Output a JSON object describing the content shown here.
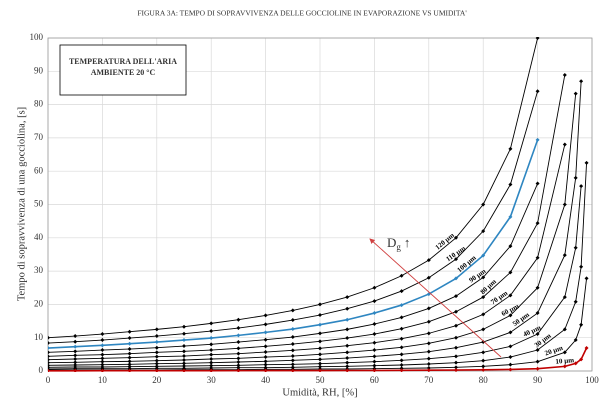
{
  "chart_data": {
    "type": "line",
    "title": "FIGURA 3A: TEMPO DI SOPRAVVIVENZA  DELLE GOCCIOLINE IN EVAPORAZIONE VS UMIDITA'",
    "xlabel": "Umidità, RH, [%]",
    "ylabel": "Tempo di sopravvivenza di una gocciolina, [s]",
    "annotation": [
      "TEMPERATURA DELL'ARIA",
      "AMBIENTE 20 °C"
    ],
    "arrow_label": {
      "text": "D",
      "sub": "g",
      "arrow": "↑"
    },
    "x": [
      0,
      5,
      10,
      15,
      20,
      25,
      30,
      35,
      40,
      45,
      50,
      55,
      60,
      65,
      70,
      75,
      80,
      85,
      90,
      95,
      97,
      98,
      99
    ],
    "xlim": [
      0,
      100
    ],
    "xticks": [
      0,
      10,
      20,
      30,
      40,
      50,
      60,
      70,
      80,
      90,
      100
    ],
    "ylim": [
      0,
      100
    ],
    "yticks": [
      0,
      10,
      20,
      30,
      40,
      50,
      60,
      70,
      80,
      90,
      100
    ],
    "grid": true,
    "series": [
      {
        "name": "120 µm",
        "color": "#000000",
        "values": [
          10,
          10.5,
          11.1,
          11.8,
          12.5,
          13.3,
          14.3,
          15.4,
          16.7,
          18.2,
          20,
          22.2,
          25,
          28.6,
          33.3,
          40,
          50,
          66.7,
          100,
          null,
          null,
          null,
          null
        ]
      },
      {
        "name": "110 µm",
        "color": "#000000",
        "values": [
          8.4,
          8.8,
          9.3,
          9.9,
          10.5,
          11.2,
          12.0,
          12.9,
          14.0,
          15.3,
          16.8,
          18.7,
          21.0,
          24.0,
          28.0,
          33.6,
          42.0,
          56.0,
          84.0,
          null,
          null,
          null,
          null
        ]
      },
      {
        "name": "100 µm",
        "color": "#2e86c1",
        "values": [
          6.9,
          7.3,
          7.7,
          8.2,
          8.7,
          9.3,
          9.9,
          10.7,
          11.6,
          12.6,
          13.9,
          15.4,
          17.4,
          19.8,
          23.1,
          27.8,
          34.7,
          46.3,
          69.4,
          null,
          null,
          null,
          null
        ]
      },
      {
        "name": "90 µm",
        "color": "#000000",
        "values": [
          5.6,
          5.9,
          6.3,
          6.6,
          7.0,
          7.5,
          8.0,
          8.7,
          9.4,
          10.2,
          11.3,
          12.5,
          14.1,
          16.1,
          18.8,
          22.5,
          28.1,
          37.5,
          56.3,
          null,
          null,
          null,
          null
        ]
      },
      {
        "name": "80 µm",
        "color": "#000000",
        "values": [
          4.4,
          4.7,
          4.9,
          5.2,
          5.6,
          5.9,
          6.3,
          6.8,
          7.4,
          8.1,
          8.9,
          9.9,
          11.1,
          12.7,
          14.8,
          17.8,
          22.2,
          29.6,
          44.4,
          88.9,
          null,
          null,
          null
        ]
      },
      {
        "name": "70 µm",
        "color": "#000000",
        "values": [
          3.4,
          3.6,
          3.8,
          4.0,
          4.3,
          4.5,
          4.9,
          5.2,
          5.7,
          6.2,
          6.8,
          7.6,
          8.5,
          9.7,
          11.3,
          13.6,
          17.0,
          22.7,
          34.0,
          68.0,
          null,
          null,
          null
        ]
      },
      {
        "name": "60 µm",
        "color": "#000000",
        "values": [
          2.5,
          2.6,
          2.8,
          2.9,
          3.1,
          3.3,
          3.6,
          3.8,
          4.2,
          4.5,
          5.0,
          5.6,
          6.3,
          7.1,
          8.3,
          10.0,
          12.5,
          16.7,
          25.0,
          50.0,
          83.3,
          null,
          null
        ]
      },
      {
        "name": "50 µm",
        "color": "#000000",
        "values": [
          1.7,
          1.8,
          1.9,
          2.0,
          2.2,
          2.3,
          2.5,
          2.7,
          2.9,
          3.2,
          3.5,
          3.9,
          4.4,
          5.0,
          5.8,
          7.0,
          8.7,
          11.6,
          17.4,
          34.8,
          58.0,
          87.0,
          null
        ]
      },
      {
        "name": "40 µm",
        "color": "#000000",
        "values": [
          1.1,
          1.2,
          1.2,
          1.3,
          1.4,
          1.5,
          1.6,
          1.7,
          1.9,
          2.0,
          2.2,
          2.5,
          2.8,
          3.2,
          3.7,
          4.4,
          5.6,
          7.4,
          11.1,
          22.2,
          37.0,
          55.5,
          null
        ]
      },
      {
        "name": "30 µm",
        "color": "#000000",
        "values": [
          0.6,
          0.7,
          0.7,
          0.7,
          0.8,
          0.8,
          0.9,
          1.0,
          1.0,
          1.1,
          1.3,
          1.4,
          1.6,
          1.8,
          2.1,
          2.5,
          3.1,
          4.2,
          6.3,
          12.5,
          20.8,
          31.3,
          62.5
        ]
      },
      {
        "name": "20 µm",
        "color": "#000000",
        "values": [
          0.3,
          0.3,
          0.3,
          0.3,
          0.3,
          0.4,
          0.4,
          0.4,
          0.5,
          0.5,
          0.6,
          0.6,
          0.7,
          0.8,
          0.9,
          1.1,
          1.4,
          1.9,
          2.8,
          5.6,
          9.3,
          13.9,
          27.8
        ]
      },
      {
        "name": "10 µm",
        "color": "#c00000",
        "values": [
          0.07,
          0.07,
          0.08,
          0.08,
          0.09,
          0.09,
          0.1,
          0.11,
          0.12,
          0.13,
          0.14,
          0.15,
          0.17,
          0.2,
          0.23,
          0.28,
          0.35,
          0.46,
          0.69,
          1.39,
          2.3,
          3.5,
          6.9
        ]
      }
    ]
  }
}
